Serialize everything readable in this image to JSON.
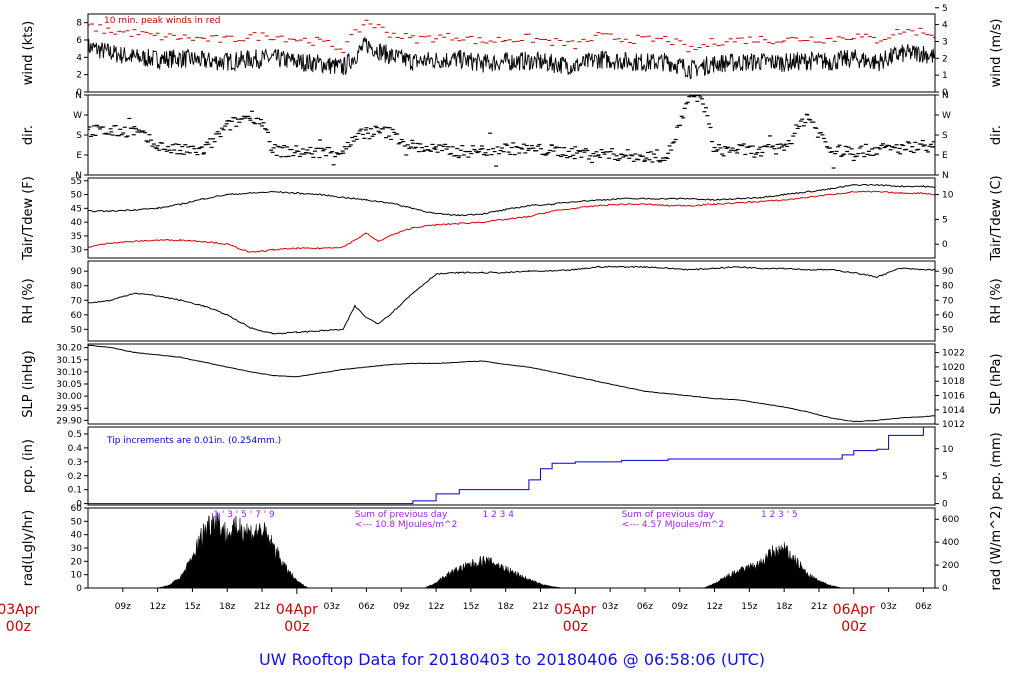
{
  "chart_data": {
    "type": "line",
    "title": "UW Rooftop Data for 20180403  to  20180406 @ 06:58:06  (UTC)",
    "x_tick_labels": [
      "09z",
      "12z",
      "15z",
      "18z",
      "21z",
      "03z",
      "06z",
      "09z",
      "12z",
      "15z",
      "18z",
      "21z",
      "03z",
      "06z",
      "09z",
      "12z",
      "15z",
      "18z",
      "21z",
      "03z",
      "06z"
    ],
    "day_labels": [
      {
        "date": "03Apr",
        "hour": "00z"
      },
      {
        "date": "04Apr",
        "hour": "00z"
      },
      {
        "date": "05Apr",
        "hour": "00z"
      },
      {
        "date": "06Apr",
        "hour": "00z"
      }
    ],
    "panels": [
      {
        "id": "wind",
        "ylabel": "wind (kts)",
        "ylabel_right": "wind (m/s)",
        "left_ticks": [
          "0",
          "2",
          "4",
          "6",
          "8"
        ],
        "right_ticks": [
          "0",
          "1",
          "2",
          "3",
          "4",
          "5"
        ],
        "ylim": [
          0,
          9
        ],
        "annotation": "10 min. peak winds in red",
        "series": [
          {
            "x": [
              6,
              8,
              10,
              12,
              14,
              16,
              18,
              20,
              22,
              24,
              26,
              28,
              30,
              32,
              34,
              36,
              38,
              40,
              42,
              44,
              46,
              48,
              50,
              52,
              54,
              56,
              58,
              60,
              62,
              64,
              66,
              68,
              70,
              72,
              74,
              76,
              78,
              79
            ],
            "values": [
              5.2,
              4.5,
              4.0,
              3.8,
              3.9,
              3.6,
              3.5,
              3.8,
              3.9,
              3.5,
              3.3,
              2.8,
              5.5,
              4.2,
              3.5,
              3.7,
              3.8,
              3.3,
              3.5,
              3.6,
              3.3,
              3.0,
              3.8,
              3.6,
              3.4,
              3.5,
              2.6,
              3.3,
              3.4,
              3.5,
              3.4,
              3.6,
              3.5,
              3.9,
              3.4,
              4.4,
              4.5,
              4.0
            ]
          },
          {
            "name": "",
            "x": [
              6,
              8,
              10,
              12,
              14,
              16,
              18,
              20,
              22,
              24,
              26,
              28,
              30,
              32,
              34,
              36,
              38,
              40,
              42,
              44,
              46,
              48,
              50,
              52,
              54,
              56,
              58,
              60,
              62,
              64,
              66,
              68,
              70,
              72,
              74,
              76,
              78,
              79
            ],
            "values": [
              7.6,
              7.0,
              6.8,
              6.4,
              6.3,
              6.1,
              6.0,
              6.4,
              6.5,
              6.1,
              5.8,
              5.0,
              8.2,
              6.8,
              6.1,
              6.3,
              6.4,
              5.8,
              6.1,
              6.2,
              5.8,
              5.4,
              6.4,
              6.2,
              6.0,
              6.1,
              4.8,
              5.8,
              6.0,
              6.1,
              6.0,
              6.2,
              6.1,
              6.5,
              6.0,
              7.0,
              7.0,
              6.6
            ]
          }
        ]
      },
      {
        "id": "dir",
        "ylabel": "dir.",
        "ylabel_right": "dir.",
        "left_ticks": [
          "N",
          "E",
          "S",
          "W",
          "N"
        ],
        "right_ticks": [
          "N",
          "E",
          "S",
          "W",
          "N"
        ],
        "ylim": [
          0,
          360
        ],
        "series": [
          {
            "x": [
              6,
              8,
              10,
              12,
              14,
              16,
              18,
              20,
              21,
              22,
              24,
              26,
              28,
              30,
              32,
              34,
              36,
              38,
              40,
              42,
              44,
              46,
              48,
              50,
              52,
              54,
              56,
              58,
              59,
              60,
              62,
              64,
              66,
              68,
              70,
              72,
              74,
              76,
              78,
              79
            ],
            "values": [
              200,
              195,
              200,
              130,
              110,
              110,
              220,
              270,
              240,
              110,
              105,
              100,
              110,
              200,
              190,
              130,
              115,
              105,
              110,
              120,
              115,
              110,
              100,
              95,
              90,
              80,
              90,
              360,
              340,
              110,
              115,
              105,
              120,
              270,
              110,
              105,
              115,
              120,
              135,
              125
            ]
          }
        ]
      },
      {
        "id": "temp",
        "ylabel": "Tair/Tdew (F)",
        "ylabel_right": "Tair/Tdew (C)",
        "left_ticks": [
          "30",
          "35",
          "40",
          "45",
          "50",
          "55"
        ],
        "right_ticks": [
          "0",
          "5",
          "10"
        ],
        "ylim": [
          27,
          56
        ],
        "series": [
          {
            "x": [
              6,
              8,
              10,
              12,
              14,
              16,
              18,
              20,
              22,
              24,
              26,
              28,
              30,
              32,
              34,
              36,
              38,
              40,
              42,
              44,
              46,
              48,
              50,
              52,
              54,
              56,
              58,
              60,
              62,
              64,
              66,
              68,
              70,
              72,
              74,
              76,
              78,
              79
            ],
            "values": [
              44,
              44,
              44.5,
              45,
              46.5,
              48.5,
              50,
              50.5,
              51,
              50.5,
              50,
              49,
              48,
              47,
              45,
              43,
              42.5,
              43,
              44.5,
              46,
              46.5,
              47.5,
              48,
              48.5,
              48.5,
              48.5,
              48.5,
              48,
              48.5,
              49,
              50,
              51,
              52,
              53.5,
              53.5,
              53,
              53,
              52.5
            ]
          },
          {
            "x": [
              6,
              8,
              10,
              12,
              14,
              16,
              18,
              20,
              22,
              24,
              26,
              28,
              30,
              31,
              32,
              34,
              36,
              38,
              40,
              42,
              44,
              46,
              48,
              50,
              52,
              54,
              56,
              58,
              60,
              62,
              64,
              66,
              68,
              70,
              72,
              74,
              76,
              78,
              79
            ],
            "values": [
              31,
              32.5,
              33,
              33.5,
              33.5,
              33,
              32,
              29,
              30,
              30.5,
              30.5,
              31,
              36,
              33,
              35,
              38,
              39,
              39.5,
              40,
              41,
              42,
              44,
              45,
              46,
              46.5,
              46.5,
              46,
              46,
              46.5,
              47,
              47.5,
              48,
              49,
              50,
              51,
              51,
              50.5,
              50.5,
              50
            ]
          }
        ]
      },
      {
        "id": "rh",
        "ylabel": "RH (%)",
        "ylabel_right": "RH (%)",
        "left_ticks": [
          "50",
          "60",
          "70",
          "80",
          "90"
        ],
        "right_ticks": [
          "50",
          "60",
          "70",
          "80",
          "90"
        ],
        "ylim": [
          42,
          97
        ],
        "series": [
          {
            "x": [
              6,
              8,
              10,
              12,
              14,
              16,
              18,
              20,
              22,
              24,
              26,
              28,
              29,
              30,
              31,
              32,
              34,
              36,
              38,
              40,
              42,
              44,
              46,
              48,
              50,
              52,
              54,
              56,
              58,
              60,
              62,
              64,
              66,
              68,
              70,
              72,
              74,
              76,
              78,
              79
            ],
            "values": [
              68,
              70,
              75,
              73,
              70,
              66,
              60,
              51,
              47,
              48,
              49,
              50,
              66,
              58,
              54,
              60,
              75,
              88,
              89,
              89,
              89,
              90,
              90,
              91,
              93,
              93,
              93,
              92,
              91,
              92,
              93,
              92,
              92,
              91,
              91,
              89,
              86,
              92,
              91,
              91
            ]
          }
        ]
      },
      {
        "id": "slp",
        "ylabel": "SLP (inHg)",
        "ylabel_right": "SLP (hPa)",
        "left_ticks": [
          "29.90",
          "29.95",
          "30.00",
          "30.05",
          "30.10",
          "30.15",
          "30.20"
        ],
        "right_ticks": [
          "1012",
          "1014",
          "1016",
          "1018",
          "1020",
          "1022"
        ],
        "ylim": [
          29.885,
          30.215
        ],
        "series": [
          {
            "x": [
              6,
              8,
              10,
              12,
              14,
              16,
              18,
              20,
              22,
              24,
              26,
              28,
              30,
              32,
              34,
              36,
              38,
              40,
              42,
              44,
              46,
              48,
              50,
              52,
              54,
              56,
              58,
              60,
              62,
              64,
              66,
              68,
              70,
              72,
              74,
              76,
              78,
              79
            ],
            "values": [
              30.21,
              30.2,
              30.18,
              30.17,
              30.16,
              30.14,
              30.12,
              30.1,
              30.085,
              30.08,
              30.095,
              30.11,
              30.12,
              30.13,
              30.135,
              30.135,
              30.14,
              30.145,
              30.13,
              30.12,
              30.1,
              30.08,
              30.06,
              30.04,
              30.02,
              30.01,
              30.0,
              29.99,
              29.985,
              29.97,
              29.955,
              29.935,
              29.91,
              29.895,
              29.9,
              29.91,
              29.915,
              29.92
            ]
          }
        ]
      },
      {
        "id": "pcp",
        "ylabel": "pcp. (in)",
        "ylabel_right": "pcp. (mm)",
        "left_ticks": [
          "0",
          "0.1",
          "0.2",
          "0.3",
          "0.4",
          "0.5"
        ],
        "right_ticks": [
          "0",
          "5",
          "10"
        ],
        "ylim": [
          -0.01,
          0.55
        ],
        "annotation": "Tip increments are 0.01in. (0.254mm.)",
        "series": [
          {
            "x": [
              6,
              32,
              34,
              36,
              38,
              39,
              42,
              44,
              45,
              46,
              48,
              50,
              52,
              54,
              56,
              58,
              60,
              62,
              64,
              66,
              68,
              70,
              71,
              72,
              74,
              75,
              78,
              79
            ],
            "values": [
              0,
              0,
              0.02,
              0.07,
              0.1,
              0.1,
              0.1,
              0.17,
              0.25,
              0.29,
              0.3,
              0.3,
              0.31,
              0.31,
              0.32,
              0.32,
              0.32,
              0.32,
              0.32,
              0.32,
              0.32,
              0.32,
              0.35,
              0.38,
              0.39,
              0.49,
              0.55,
              0.55
            ]
          }
        ]
      },
      {
        "id": "rad",
        "ylabel": "rad(Lgly/hr)",
        "ylabel_right": "rad (W/m^2)",
        "left_ticks": [
          "0",
          "10",
          "20",
          "30",
          "40",
          "50",
          "60"
        ],
        "right_ticks": [
          "0",
          "200",
          "400",
          "600"
        ],
        "ylim": [
          0,
          60
        ],
        "series": [
          {
            "x": [
              12,
              13,
              14,
              15,
              16,
              17,
              18,
              19,
              20,
              21,
              22,
              23,
              24,
              25,
              35,
              36,
              37,
              38,
              39,
              40,
              41,
              42,
              43,
              44,
              45,
              46,
              47,
              59,
              60,
              61,
              62,
              63,
              64,
              65,
              66,
              67,
              68,
              69,
              70,
              71
            ],
            "values": [
              0,
              2,
              8,
              22,
              42,
              52,
              38,
              45,
              40,
              42,
              30,
              15,
              5,
              0,
              0,
              4,
              10,
              14,
              17,
              20,
              18,
              14,
              10,
              6,
              3,
              1,
              0,
              0,
              3,
              8,
              12,
              15,
              18,
              26,
              28,
              20,
              10,
              5,
              2,
              0
            ]
          }
        ],
        "annotations": [
          {
            "text": "1  ' 3 ' 5 ' 7 ' 9",
            "x": 16.8
          },
          {
            "text": "1 2 3 4",
            "x": 40
          },
          {
            "text": "1 2 3 ' 5",
            "x": 64
          }
        ],
        "notes": [
          {
            "line1": "Sum of previous day",
            "line2": "<--- 10.8 MJoules/m^2",
            "x": 29
          },
          {
            "line1": "Sum of previous day",
            "line2": "<--- 4.57 MJoules/m^2",
            "x": 52
          }
        ]
      }
    ],
    "colors": {
      "primary": "#000000",
      "peak_wind": "#cc0000",
      "dewpoint": "#dd0000",
      "precip": "#0000cc",
      "annotation": "#a020f0",
      "title": "#1010ee",
      "day_label": "#cc0000"
    }
  }
}
